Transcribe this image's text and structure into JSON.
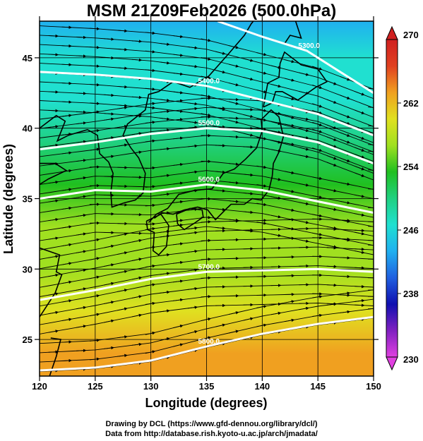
{
  "chart_data": {
    "type": "contour",
    "title": "MSM 21Z09Feb2026 (500.0hPa)",
    "xlabel": "Longitude (degrees)",
    "ylabel": "Latitude  (degrees)",
    "xlim": [
      120,
      150
    ],
    "ylim": [
      22.4,
      47.6
    ],
    "xticks": [
      120,
      125,
      130,
      135,
      140,
      145,
      150
    ],
    "yticks": [
      25,
      30,
      35,
      40,
      45
    ],
    "colorbar": {
      "min": 230,
      "max": 270,
      "ticks": [
        230,
        238,
        246,
        254,
        262,
        270
      ],
      "colors": [
        "#e040e0",
        "#8020c0",
        "#1010b0",
        "#2060e0",
        "#20b0f0",
        "#20e0d0",
        "#20d080",
        "#20c020",
        "#a0e020",
        "#e0e020",
        "#f0a020",
        "#e04020",
        "#d02020"
      ]
    },
    "field": {
      "variable": "temperature",
      "samples": [
        {
          "lat": 47.6,
          "val": 242
        },
        {
          "lat": 45,
          "val": 245
        },
        {
          "lat": 42,
          "val": 248
        },
        {
          "lat": 39,
          "val": 251
        },
        {
          "lat": 36,
          "val": 253.5
        },
        {
          "lat": 33,
          "val": 255.5
        },
        {
          "lat": 30,
          "val": 257.5
        },
        {
          "lat": 27,
          "val": 260
        },
        {
          "lat": 24,
          "val": 262.5
        },
        {
          "lat": 22.4,
          "val": 264
        }
      ]
    },
    "contours": [
      {
        "label": "5300.0",
        "points": [
          [
            136,
            47.6
          ],
          [
            140,
            46.5
          ],
          [
            144,
            45.5
          ],
          [
            147,
            44
          ],
          [
            150,
            42.5
          ]
        ]
      },
      {
        "label": "5400.0",
        "points": [
          [
            120,
            44
          ],
          [
            125,
            43.8
          ],
          [
            130,
            43.5
          ],
          [
            135,
            43
          ],
          [
            140,
            42
          ],
          [
            145,
            41
          ],
          [
            150,
            39.5
          ]
        ]
      },
      {
        "label": "5500.0",
        "points": [
          [
            120,
            38.5
          ],
          [
            125,
            39
          ],
          [
            130,
            39.6
          ],
          [
            135,
            40
          ],
          [
            140,
            39.8
          ],
          [
            145,
            39
          ],
          [
            150,
            37.5
          ]
        ]
      },
      {
        "label": "5600.0",
        "points": [
          [
            120,
            35
          ],
          [
            125,
            35.6
          ],
          [
            130,
            35.5
          ],
          [
            135,
            36
          ],
          [
            140,
            35.6
          ],
          [
            145,
            34.8
          ],
          [
            150,
            34
          ]
        ]
      },
      {
        "label": "5700.0",
        "points": [
          [
            120,
            27.8
          ],
          [
            125,
            28.5
          ],
          [
            130,
            29.3
          ],
          [
            135,
            29.8
          ],
          [
            140,
            29.9
          ],
          [
            145,
            30
          ],
          [
            150,
            29.8
          ]
        ]
      },
      {
        "label": "5800.0",
        "points": [
          [
            120,
            22.8
          ],
          [
            125,
            23
          ],
          [
            130,
            23.5
          ],
          [
            135,
            24.5
          ],
          [
            140,
            25.4
          ],
          [
            145,
            26.1
          ],
          [
            150,
            26.6
          ]
        ]
      }
    ],
    "streamlines": {
      "description": "westerly flow with arrows",
      "count": 38
    }
  },
  "credits": {
    "line1": "Drawing by DCL (https://www.gfd-dennou.org/library/dcl/)",
    "line2": "Data from http://database.rish.kyoto-u.ac.jp/arch/jmadata/"
  }
}
